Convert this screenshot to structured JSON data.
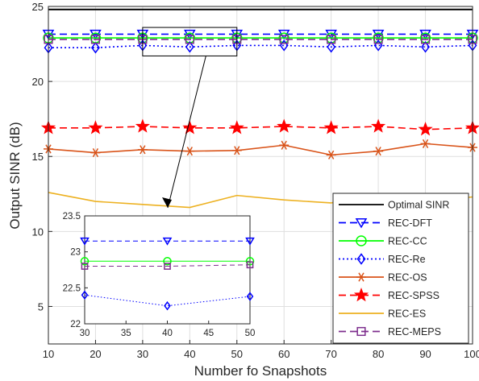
{
  "chart_data": {
    "type": "line",
    "xlabel": "Number fo Snapshots",
    "ylabel": "Output SINR (dB)",
    "xlim": [
      10,
      100
    ],
    "ylim": [
      2.5,
      25
    ],
    "xticks": [
      10,
      20,
      30,
      40,
      50,
      60,
      70,
      80,
      90,
      100
    ],
    "yticks": [
      5,
      10,
      15,
      20,
      25
    ],
    "grid": true,
    "legend_position": "bottom-right",
    "x": [
      10,
      20,
      30,
      40,
      50,
      60,
      70,
      80,
      90,
      100
    ],
    "series": [
      {
        "name": "Optimal SINR",
        "color": "#000000",
        "dash": "solid",
        "marker": "none",
        "values": [
          24.8,
          24.8,
          24.8,
          24.8,
          24.8,
          24.8,
          24.8,
          24.8,
          24.8,
          24.8
        ]
      },
      {
        "name": "REC-DFT",
        "color": "#0000ff",
        "dash": "dashed",
        "marker": "triangle-down",
        "values": [
          23.15,
          23.15,
          23.15,
          23.15,
          23.15,
          23.15,
          23.15,
          23.15,
          23.15,
          23.15
        ]
      },
      {
        "name": "REC-CC",
        "color": "#00ff00",
        "dash": "solid",
        "marker": "circle",
        "values": [
          22.9,
          22.9,
          22.9,
          22.9,
          22.9,
          22.9,
          22.9,
          22.9,
          22.9,
          22.9
        ]
      },
      {
        "name": "REC-Re",
        "color": "#0000ff",
        "dash": "dotted",
        "marker": "diamond",
        "values": [
          22.25,
          22.25,
          22.4,
          22.3,
          22.4,
          22.4,
          22.3,
          22.4,
          22.3,
          22.4
        ]
      },
      {
        "name": "REC-OS",
        "color": "#d95319",
        "dash": "solid",
        "marker": "asterisk",
        "values": [
          15.5,
          15.25,
          15.45,
          15.35,
          15.4,
          15.75,
          15.1,
          15.35,
          15.85,
          15.6
        ]
      },
      {
        "name": "REC-SPSS",
        "color": "#ff0000",
        "dash": "dashed",
        "marker": "star",
        "values": [
          16.9,
          16.9,
          17.0,
          16.9,
          16.9,
          17.0,
          16.9,
          17.0,
          16.8,
          16.9
        ]
      },
      {
        "name": "REC-ES",
        "color": "#edb120",
        "dash": "solid",
        "marker": "none",
        "values": [
          12.6,
          12.0,
          11.8,
          11.6,
          12.4,
          12.1,
          11.9,
          12.5,
          12.0,
          12.3
        ]
      },
      {
        "name": "REC-MEPS",
        "color": "#7e2f8e",
        "dash": "dashed",
        "marker": "square",
        "values": [
          22.8,
          22.8,
          22.8,
          22.8,
          22.8,
          22.8,
          22.8,
          22.8,
          22.8,
          22.8
        ]
      }
    ],
    "inset": {
      "xlim": [
        30,
        50
      ],
      "ylim": [
        22,
        23.5
      ],
      "xticks": [
        30,
        35,
        40,
        45,
        50
      ],
      "yticks": [
        22,
        22.5,
        23,
        23.5
      ],
      "x": [
        30,
        40,
        50
      ],
      "series": [
        {
          "name": "REC-DFT",
          "values": [
            23.15,
            23.15,
            23.15
          ]
        },
        {
          "name": "REC-CC",
          "values": [
            22.87,
            22.87,
            22.87
          ]
        },
        {
          "name": "REC-Re",
          "values": [
            22.4,
            22.25,
            22.38
          ]
        },
        {
          "name": "REC-MEPS",
          "values": [
            22.8,
            22.8,
            22.82
          ]
        }
      ]
    }
  }
}
